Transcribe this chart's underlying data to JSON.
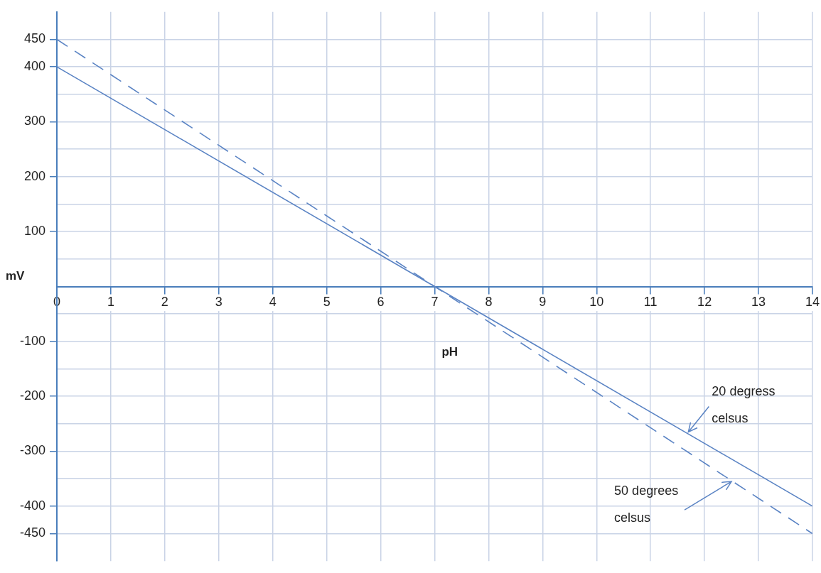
{
  "chart_data": {
    "type": "line",
    "xlabel": "pH",
    "ylabel": "mV",
    "x": [
      0,
      7,
      14
    ],
    "series": [
      {
        "color": "#5b84c4",
        "values": [
          400,
          0,
          -400
        ],
        "line_style": "solid"
      },
      {
        "color": "#5b84c4",
        "values": [
          450,
          0,
          -450
        ],
        "line_style": "dashed"
      }
    ],
    "xlim": [
      0,
      14
    ],
    "xticks": [
      0,
      1,
      2,
      3,
      4,
      5,
      6,
      7,
      8,
      9,
      10,
      11,
      12,
      13,
      14
    ],
    "ylim": [
      -500,
      500
    ],
    "yticks": [
      -450,
      -400,
      {
        "value": -350,
        "label": null
      },
      -300,
      {
        "value": -250,
        "label": null
      },
      -200,
      {
        "value": -150,
        "label": null
      },
      -100,
      {
        "value": -50,
        "label": null
      },
      {
        "value": 0,
        "label": null
      },
      {
        "value": 50,
        "label": null
      },
      100,
      {
        "value": 150,
        "label": null
      },
      200,
      {
        "value": 250,
        "label": null
      },
      300,
      {
        "value": 350,
        "label": null
      },
      400,
      450
    ],
    "grid": true,
    "marker": "none",
    "annotations": [
      {
        "text": "20 degress celsus",
        "x": 11.7,
        "y": -265
      },
      {
        "text": "50 degrees celsus",
        "x": 12.5,
        "y": -355
      }
    ]
  }
}
